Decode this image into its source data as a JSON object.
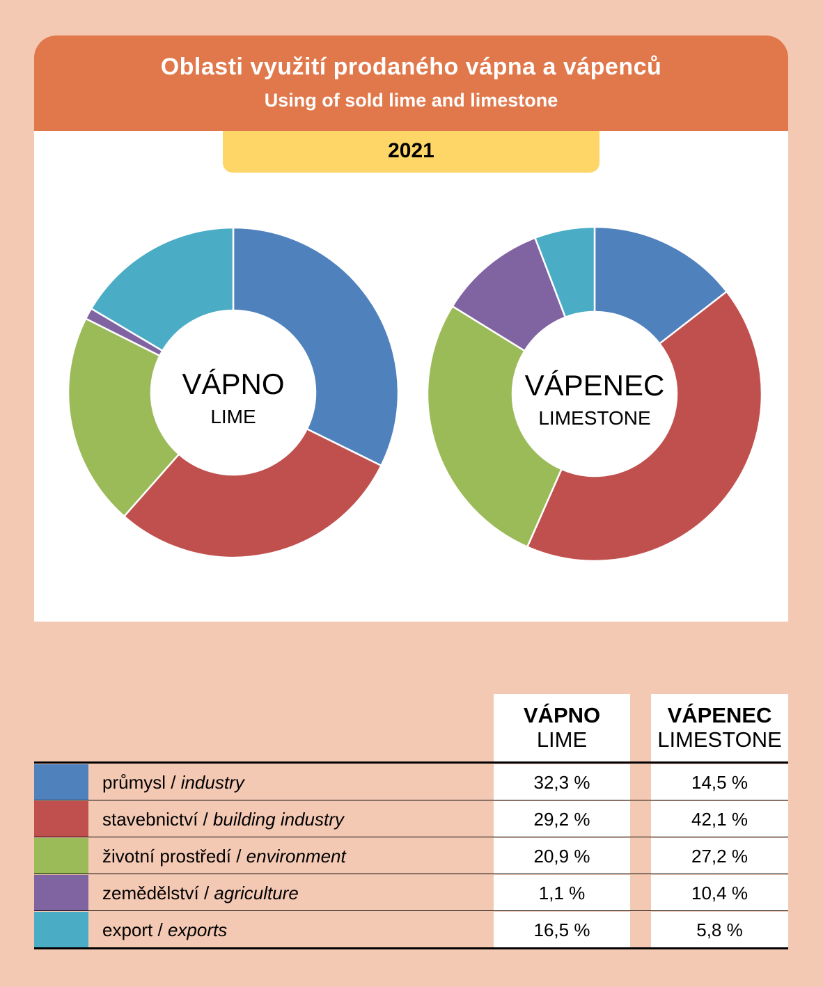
{
  "header": {
    "title": "Oblasti využití prodaného vápna a vápenců",
    "subtitle": "Using of sold lime and limestone",
    "year": "2021"
  },
  "categories": [
    {
      "cz": "průmysl",
      "en": "industry",
      "color": "#4f81bd"
    },
    {
      "cz": "stavebnictví",
      "en": "building industry",
      "color": "#c0504d"
    },
    {
      "cz": "životní prostředí",
      "en": "environment",
      "color": "#9bbb59"
    },
    {
      "cz": "zemědělství",
      "en": "agriculture",
      "color": "#8064a2"
    },
    {
      "cz": "export",
      "en": "exports",
      "color": "#4bacc6"
    }
  ],
  "chart_data": [
    {
      "type": "pie",
      "title": "VÁPNO",
      "subtitle": "LIME",
      "categories": [
        "průmysl / industry",
        "stavebnictví / building industry",
        "životní prostředí / environment",
        "zemědělství / agriculture",
        "export / exports"
      ],
      "values": [
        32.3,
        29.2,
        20.9,
        1.1,
        16.5
      ],
      "value_labels": [
        "32,3 %",
        "29,2 %",
        "20,9 %",
        "1,1 %",
        "16,5 %"
      ]
    },
    {
      "type": "pie",
      "title": "VÁPENEC",
      "subtitle": "LIMESTONE",
      "categories": [
        "průmysl / industry",
        "stavebnictví / building industry",
        "životní prostředí / environment",
        "zemědělství / agriculture",
        "export / exports"
      ],
      "values": [
        14.5,
        42.1,
        27.2,
        10.4,
        5.8
      ],
      "value_labels": [
        "14,5 %",
        "42,1 %",
        "27,2 %",
        "10,4 %",
        "5,8 %"
      ]
    }
  ],
  "table": {
    "col1": {
      "title": "VÁPNO",
      "subtitle": "LIME"
    },
    "col2": {
      "title": "VÁPENEC",
      "subtitle": "LIMESTONE"
    },
    "rows": [
      {
        "cz": "průmysl",
        "en": "industry",
        "v1": "32,3 %",
        "v2": "14,5 %"
      },
      {
        "cz": "stavebnictví",
        "en": "building industry",
        "v1": "29,2 %",
        "v2": "42,1 %"
      },
      {
        "cz": "životní prostředí",
        "en": "environment",
        "v1": "20,9 %",
        "v2": "27,2 %"
      },
      {
        "cz": "zemědělství",
        "en": "agriculture",
        "v1": "1,1 %",
        "v2": "10,4 %"
      },
      {
        "cz": "export",
        "en": "exports",
        "v1": "16,5 %",
        "v2": "5,8 %"
      }
    ]
  }
}
